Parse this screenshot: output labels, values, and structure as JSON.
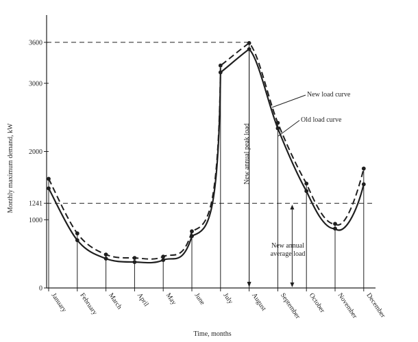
{
  "chart_data": {
    "type": "line",
    "xlabel": "Time, months",
    "ylabel": "Monthly maximum demand, kW",
    "categories": [
      "January",
      "February",
      "March",
      "April",
      "May",
      "June",
      "July",
      "August",
      "September",
      "October",
      "November",
      "December"
    ],
    "ylim": [
      0,
      4000
    ],
    "yticks": [
      0,
      1000,
      1241,
      2000,
      3000,
      3600
    ],
    "ytick_labels": [
      "0",
      "1000",
      "1241",
      "2000",
      "3000",
      "3600"
    ],
    "grid": false,
    "series": [
      {
        "name": "New load curve",
        "style": "dashed",
        "values": [
          1600,
          800,
          490,
          440,
          460,
          830,
          3260,
          3590,
          2420,
          1530,
          940,
          1750
        ]
      },
      {
        "name": "Old load curve",
        "style": "solid",
        "values": [
          1460,
          700,
          430,
          380,
          410,
          760,
          3160,
          3500,
          2340,
          1420,
          870,
          1520
        ]
      }
    ],
    "reference_lines": [
      {
        "value": 3600,
        "style": "dashed"
      },
      {
        "value": 1241,
        "style": "dashed"
      }
    ],
    "annotations": [
      {
        "text": "New annual peak load"
      },
      {
        "text": "New annual average load",
        "lines": [
          "New annual",
          "average load"
        ]
      }
    ],
    "colors": {
      "ink": "#1f1f1f",
      "background": "#ffffff"
    }
  }
}
